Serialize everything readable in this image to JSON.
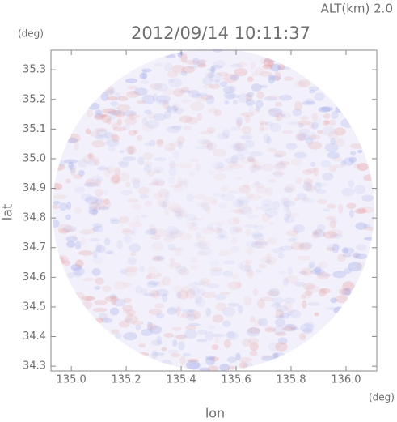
{
  "chart_data": {
    "type": "map",
    "title": "2012/09/14 10:11:37",
    "annotation": "ALT(km) 2.0",
    "ylabel": "lat",
    "yunit": "(deg)",
    "xlabel": "lon",
    "xunit": "(deg)",
    "xlim": [
      134.926,
      136.112
    ],
    "xticks": [
      {
        "value": 135.0,
        "label": "135.0"
      },
      135.2,
      135.4,
      135.6,
      135.8,
      {
        "value": 136.0,
        "label": "136.0"
      }
    ],
    "ylim": [
      34.284,
      35.366
    ],
    "yticks": [
      34.3,
      34.4,
      34.5,
      34.6,
      34.7,
      34.8,
      34.9,
      {
        "value": 35.0,
        "label": "35.0"
      },
      35.1,
      35.2,
      35.3
    ]
  }
}
